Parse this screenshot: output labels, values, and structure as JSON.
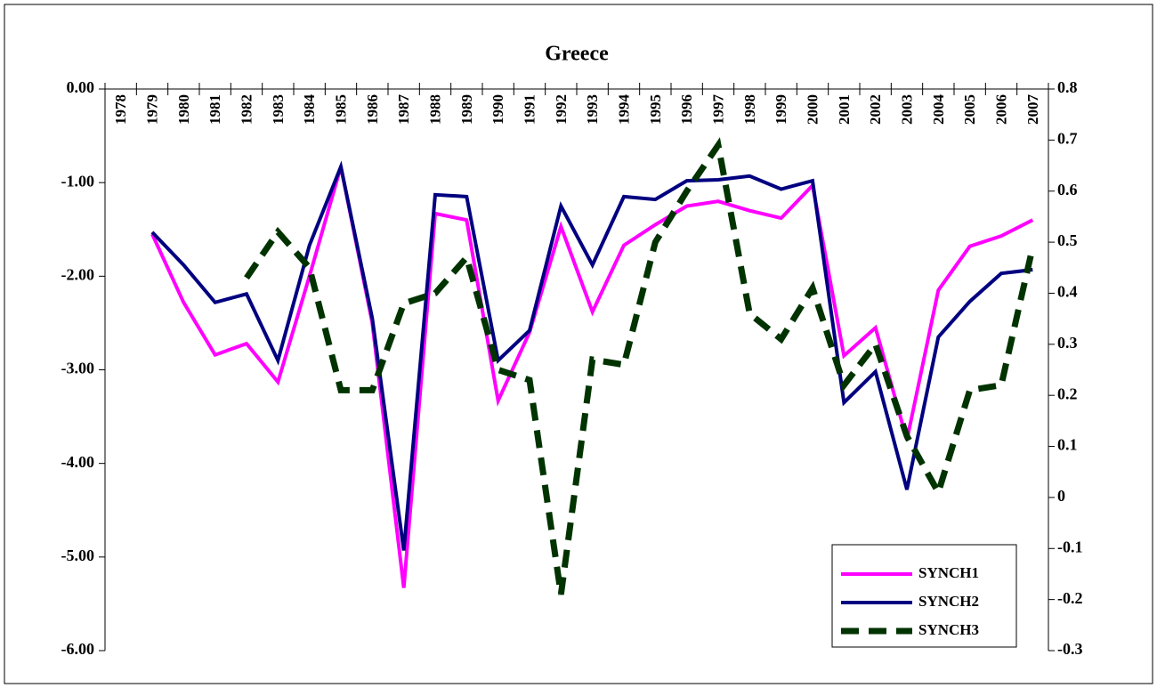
{
  "chart_data": {
    "type": "line",
    "title": "Greece",
    "categories": [
      "1978",
      "1979",
      "1980",
      "1981",
      "1982",
      "1983",
      "1984",
      "1985",
      "1986",
      "1987",
      "1988",
      "1989",
      "1990",
      "1991",
      "1992",
      "1993",
      "1994",
      "1995",
      "1996",
      "1997",
      "1998",
      "1999",
      "2000",
      "2001",
      "2002",
      "2003",
      "2004",
      "2005",
      "2006",
      "2007"
    ],
    "series": [
      {
        "name": "SYNCH1",
        "color": "#ff00ff",
        "values": [
          null,
          -1.55,
          -2.28,
          -2.84,
          -2.72,
          -3.13,
          -2.0,
          -0.83,
          -2.5,
          -5.33,
          -1.33,
          -1.4,
          -3.33,
          -2.6,
          -1.47,
          -2.38,
          -1.67,
          -1.45,
          -1.25,
          -1.2,
          -1.3,
          -1.38,
          -1.03,
          -2.85,
          -2.55,
          -3.75,
          -2.15,
          -1.68,
          -1.57,
          -1.4
        ]
      },
      {
        "name": "SYNCH2",
        "color": "#000080",
        "values": [
          null,
          -1.53,
          -1.88,
          -2.28,
          -2.19,
          -2.9,
          -1.67,
          -0.83,
          -2.45,
          -4.93,
          -1.13,
          -1.15,
          -2.9,
          -2.58,
          -1.25,
          -1.88,
          -1.15,
          -1.18,
          -0.98,
          -0.97,
          -0.93,
          -1.07,
          -0.98,
          -3.35,
          -3.02,
          -4.28,
          -2.65,
          -2.27,
          -1.97,
          -1.93
        ]
      },
      {
        "name": "SYNCH3",
        "color": "#003300",
        "axis": "y2",
        "dashed": true,
        "values": [
          null,
          null,
          null,
          null,
          0.43,
          0.52,
          0.45,
          0.21,
          0.21,
          0.38,
          0.4,
          0.47,
          0.25,
          0.23,
          -0.19,
          0.27,
          0.26,
          0.5,
          0.6,
          0.69,
          0.36,
          0.31,
          0.41,
          0.22,
          0.3,
          0.12,
          0.01,
          0.21,
          0.22,
          0.49
        ]
      }
    ],
    "ylim": [
      -6,
      0
    ],
    "yticks": [
      {
        "value": 0,
        "label": "0.00"
      },
      {
        "value": -1,
        "label": "-1.00"
      },
      {
        "value": -2,
        "label": "-2.00"
      },
      {
        "value": -3,
        "label": "-3.00"
      },
      {
        "value": -4,
        "label": "-4.00"
      },
      {
        "value": -5,
        "label": "-5.00"
      },
      {
        "value": -6,
        "label": "-6.00"
      }
    ],
    "y2lim": [
      -0.3,
      0.8
    ],
    "y2ticks": [
      0.8,
      0.7,
      0.6,
      0.5,
      0.4,
      0.3,
      0.2,
      0.1,
      0,
      -0.1,
      -0.2,
      -0.3
    ],
    "legend": "lower right",
    "grid": false
  }
}
